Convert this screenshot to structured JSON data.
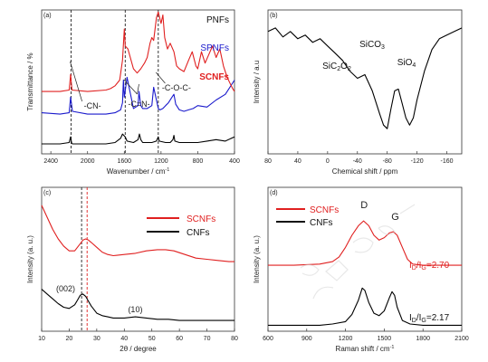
{
  "chart_data": [
    {
      "panel_label": "(a)",
      "type": "line",
      "xlabel": "Wavenumber / cm",
      "xlabel_sup": "-1",
      "ylabel": "Transmittance / %",
      "xlim": [
        2500,
        400
      ],
      "x_ticks": [
        "2400",
        "2000",
        "1600",
        "1200",
        "800",
        "400"
      ],
      "x_tick_values": [
        2400,
        2000,
        1600,
        1200,
        800,
        400
      ],
      "y_ticks_shown": false,
      "reference_lines": [
        2180,
        1590,
        1230
      ],
      "annotations": [
        "-CN-",
        "-C=N-",
        "-C-O-C-"
      ],
      "series": [
        {
          "name": "PNFs",
          "color": "#000000",
          "x": [
            2500,
            2300,
            2200,
            2185,
            2175,
            2165,
            2000,
            1800,
            1700,
            1640,
            1620,
            1590,
            1570,
            1500,
            1450,
            1435,
            1420,
            1400,
            1300,
            1250,
            1230,
            1220,
            1150,
            1100,
            1070,
            1060,
            1050,
            1000,
            900,
            800,
            700,
            600,
            500,
            400
          ],
          "values": [
            95,
            95,
            94,
            90,
            94,
            95,
            95,
            95,
            94,
            91,
            88,
            90,
            93,
            94,
            92,
            88,
            92,
            94,
            94,
            93,
            90,
            93,
            94,
            94,
            92,
            89,
            93,
            94,
            94,
            94,
            93,
            92,
            93,
            90
          ]
        },
        {
          "name": "SPNFs",
          "color": "#1a1acc",
          "x": [
            2500,
            2300,
            2200,
            2185,
            2165,
            2000,
            1800,
            1700,
            1640,
            1620,
            1610,
            1600,
            1595,
            1570,
            1500,
            1450,
            1440,
            1420,
            1400,
            1350,
            1300,
            1280,
            1250,
            1230,
            1210,
            1180,
            1150,
            1120,
            1080,
            1060,
            1040,
            1000,
            950,
            900,
            850,
            800,
            700,
            600,
            500,
            400
          ],
          "values": [
            73,
            74,
            73,
            62,
            72,
            74,
            74,
            73,
            71,
            66,
            50,
            62,
            60,
            48,
            70,
            68,
            58,
            68,
            70,
            70,
            68,
            55,
            64,
            70,
            71,
            70,
            68,
            66,
            62,
            60,
            67,
            71,
            72,
            71,
            70,
            68,
            69,
            64,
            60,
            50
          ]
        },
        {
          "name": "SCNFs",
          "color": "#e02020",
          "x": [
            2500,
            2300,
            2200,
            2185,
            2170,
            2000,
            1800,
            1750,
            1700,
            1650,
            1620,
            1600,
            1590,
            1560,
            1500,
            1460,
            1420,
            1380,
            1350,
            1320,
            1300,
            1280,
            1250,
            1230,
            1200,
            1180,
            1160,
            1130,
            1100,
            1060,
            1030,
            1000,
            950,
            900,
            860,
            820,
            800,
            760,
            720,
            680,
            640,
            600,
            560,
            520,
            480,
            450,
            420,
            400
          ],
          "values": [
            58,
            58,
            57,
            46,
            57,
            58,
            57,
            56,
            54,
            50,
            36,
            14,
            26,
            28,
            42,
            45,
            42,
            38,
            34,
            24,
            20,
            22,
            6,
            2,
            10,
            4,
            20,
            28,
            24,
            30,
            40,
            42,
            44,
            36,
            30,
            40,
            42,
            30,
            38,
            32,
            26,
            34,
            28,
            40,
            48,
            52,
            56,
            58
          ]
        }
      ]
    },
    {
      "panel_label": "(b)",
      "type": "line",
      "xlabel": "Chemical shift / ppm",
      "ylabel": "Intensity / a.u",
      "xlim": [
        80,
        -180
      ],
      "x_ticks": [
        "80",
        "40",
        "0",
        "-40",
        "-80",
        "-120",
        "-160"
      ],
      "x_tick_values": [
        80,
        40,
        0,
        -40,
        -80,
        -120,
        -160
      ],
      "y_ticks_shown": false,
      "annotations": [
        "SiC2O2",
        "SiCO3",
        "SiO4"
      ],
      "series": [
        {
          "name": "",
          "color": "#000000",
          "x": [
            80,
            70,
            60,
            50,
            40,
            30,
            20,
            10,
            0,
            -10,
            -20,
            -30,
            -40,
            -50,
            -60,
            -70,
            -75,
            -80,
            -85,
            -90,
            -95,
            -100,
            -105,
            -110,
            -115,
            -120,
            -130,
            -140,
            -150,
            -160,
            -170,
            -180
          ],
          "values": [
            0.12,
            0.1,
            0.15,
            0.12,
            0.16,
            0.14,
            0.18,
            0.16,
            0.2,
            0.24,
            0.28,
            0.34,
            0.38,
            0.36,
            0.45,
            0.58,
            0.64,
            0.66,
            0.55,
            0.45,
            0.44,
            0.52,
            0.6,
            0.64,
            0.6,
            0.5,
            0.34,
            0.22,
            0.16,
            0.14,
            0.12,
            0.1
          ]
        }
      ]
    },
    {
      "panel_label": "(c)",
      "type": "line",
      "xlabel": "2θ / degree",
      "ylabel": "Intensity (a. u.)",
      "xlim": [
        10,
        80
      ],
      "x_ticks": [
        "10",
        "20",
        "30",
        "40",
        "50",
        "60",
        "70",
        "80"
      ],
      "x_tick_values": [
        10,
        20,
        30,
        40,
        50,
        60,
        70,
        80
      ],
      "y_ticks_shown": false,
      "reference_lines": [
        24.5,
        26.5
      ],
      "annotations": [
        "(002)",
        "(10)"
      ],
      "legend": [
        "SCNFs",
        "CNFs"
      ],
      "legend_position": "top-right",
      "series": [
        {
          "name": "SCNFs",
          "color": "#e02020",
          "x": [
            10,
            12,
            14,
            16,
            18,
            20,
            22,
            24,
            25,
            26,
            27,
            28,
            30,
            32,
            34,
            36,
            40,
            44,
            48,
            52,
            55,
            58,
            62,
            66,
            70,
            74,
            78,
            80
          ],
          "values": [
            1.0,
            0.9,
            0.8,
            0.72,
            0.66,
            0.62,
            0.62,
            0.68,
            0.71,
            0.72,
            0.71,
            0.69,
            0.65,
            0.61,
            0.59,
            0.58,
            0.59,
            0.6,
            0.62,
            0.63,
            0.63,
            0.62,
            0.59,
            0.56,
            0.55,
            0.54,
            0.53,
            0.53
          ]
        },
        {
          "name": "CNFs",
          "color": "#000000",
          "x": [
            10,
            12,
            14,
            16,
            18,
            20,
            22,
            23,
            24,
            25,
            26,
            27,
            28,
            30,
            32,
            34,
            36,
            40,
            44,
            48,
            52,
            56,
            60,
            64,
            68,
            72,
            76,
            80
          ],
          "values": [
            0.3,
            0.26,
            0.22,
            0.18,
            0.15,
            0.14,
            0.17,
            0.21,
            0.25,
            0.26,
            0.24,
            0.2,
            0.16,
            0.1,
            0.08,
            0.07,
            0.06,
            0.06,
            0.07,
            0.06,
            0.05,
            0.05,
            0.04,
            0.04,
            0.04,
            0.04,
            0.04,
            0.04
          ]
        }
      ]
    },
    {
      "panel_label": "(d)",
      "type": "line",
      "xlabel": "Raman shift / cm",
      "xlabel_sup": "-1",
      "ylabel": "Intensity (a. u.)",
      "xlim": [
        600,
        2100
      ],
      "x_ticks": [
        "600",
        "900",
        "1200",
        "1500",
        "1800",
        "2100"
      ],
      "x_tick_values": [
        600,
        900,
        1200,
        1500,
        1800,
        2100
      ],
      "y_ticks_shown": false,
      "annotations": [
        "D",
        "G"
      ],
      "ratio_labels": [
        {
          "series": "SCNFs",
          "text": "=2.70"
        },
        {
          "series": "CNFs",
          "text": "=2.17"
        }
      ],
      "legend": [
        "SCNFs",
        "CNFs"
      ],
      "legend_position": "top-left",
      "series": [
        {
          "name": "SCNFs",
          "color": "#e02020",
          "x": [
            600,
            800,
            1000,
            1100,
            1150,
            1200,
            1250,
            1300,
            1340,
            1380,
            1420,
            1460,
            1500,
            1540,
            1570,
            1600,
            1640,
            1680,
            1720,
            1800,
            1900,
            2000,
            2100
          ],
          "values": [
            0.55,
            0.55,
            0.56,
            0.58,
            0.62,
            0.7,
            0.8,
            0.88,
            0.92,
            0.88,
            0.8,
            0.76,
            0.78,
            0.82,
            0.83,
            0.8,
            0.7,
            0.6,
            0.56,
            0.55,
            0.55,
            0.55,
            0.55
          ]
        },
        {
          "name": "CNFs",
          "color": "#000000",
          "x": [
            600,
            800,
            1000,
            1100,
            1200,
            1250,
            1300,
            1330,
            1350,
            1380,
            1420,
            1460,
            1500,
            1540,
            1560,
            1580,
            1600,
            1640,
            1700,
            1800,
            1900,
            2000,
            2100
          ],
          "values": [
            0.05,
            0.05,
            0.05,
            0.06,
            0.08,
            0.14,
            0.26,
            0.36,
            0.34,
            0.24,
            0.15,
            0.13,
            0.17,
            0.28,
            0.33,
            0.3,
            0.2,
            0.09,
            0.06,
            0.05,
            0.05,
            0.05,
            0.05
          ]
        }
      ]
    }
  ]
}
